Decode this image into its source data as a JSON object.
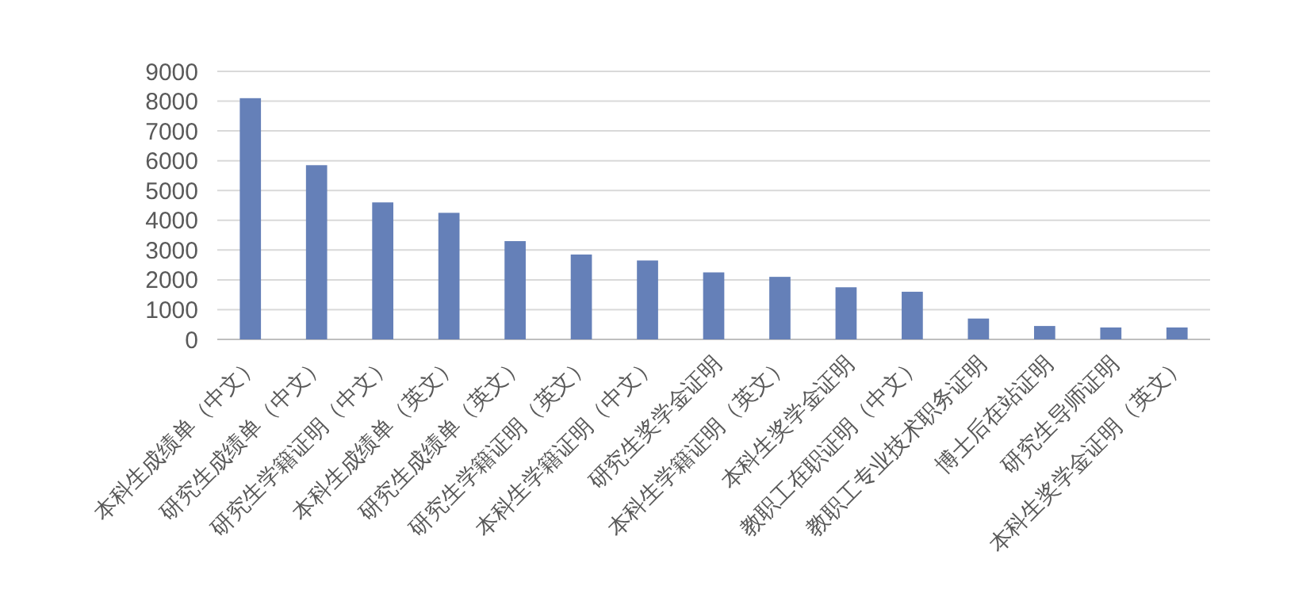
{
  "chart_data": {
    "type": "bar",
    "categories": [
      "本科生成绩单（中文）",
      "研究生成绩单（中文）",
      "研究生学籍证明（中文）",
      "本科生成绩单（英文）",
      "研究生成绩单（英文）",
      "研究生学籍证明（英文）",
      "本科生学籍证明（中文）",
      "研究生奖学金证明",
      "本科生学籍证明（英文）",
      "本科生奖学金证明",
      "教职工在职证明（中文）",
      "教职工专业技术职务证明",
      "博士后在站证明",
      "研究生导师证明",
      "本科生奖学金证明（英文）"
    ],
    "values": [
      8100,
      5850,
      4600,
      4250,
      3300,
      2850,
      2650,
      2250,
      2100,
      1750,
      1600,
      700,
      450,
      400,
      400
    ],
    "color": "#6580b8",
    "ylim": [
      0,
      9000
    ],
    "yticks": [
      0,
      1000,
      2000,
      3000,
      4000,
      5000,
      6000,
      7000,
      8000,
      9000
    ],
    "grid": "y"
  }
}
